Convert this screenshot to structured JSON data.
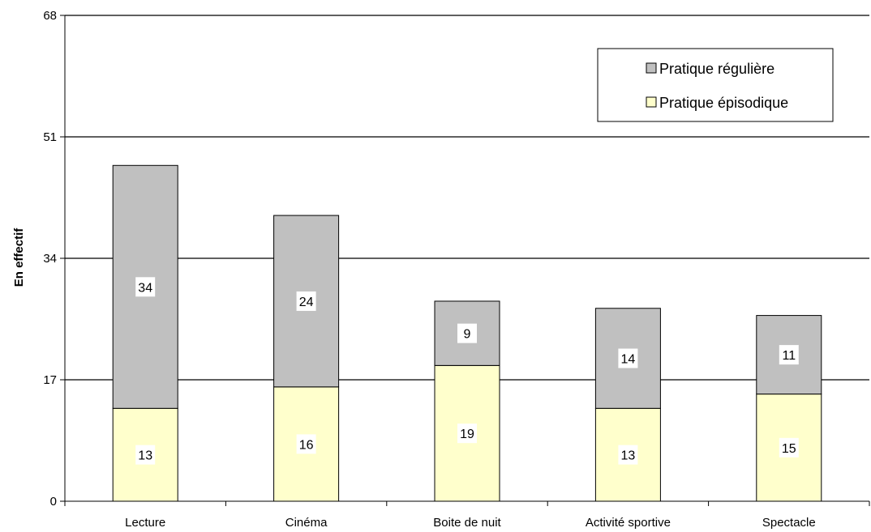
{
  "chart_data": {
    "type": "bar",
    "stacked": true,
    "categories": [
      "Lecture",
      "Cinéma",
      "Boite de nuit",
      "Activité sportive",
      "Spectacle"
    ],
    "series": [
      {
        "name": "Pratique épisodique",
        "values": [
          13,
          16,
          19,
          13,
          15
        ],
        "color": "#ffffcc"
      },
      {
        "name": "Pratique régulière",
        "values": [
          34,
          24,
          9,
          14,
          11
        ],
        "color": "#c0c0c0"
      }
    ],
    "ylabel": "En effectif",
    "xlabel": "",
    "ylim": [
      0,
      68
    ],
    "yticks": [
      0,
      17,
      34,
      51,
      68
    ],
    "grid": true,
    "legend_position": "top-right",
    "legend_order": [
      "Pratique régulière",
      "Pratique épisodique"
    ]
  }
}
